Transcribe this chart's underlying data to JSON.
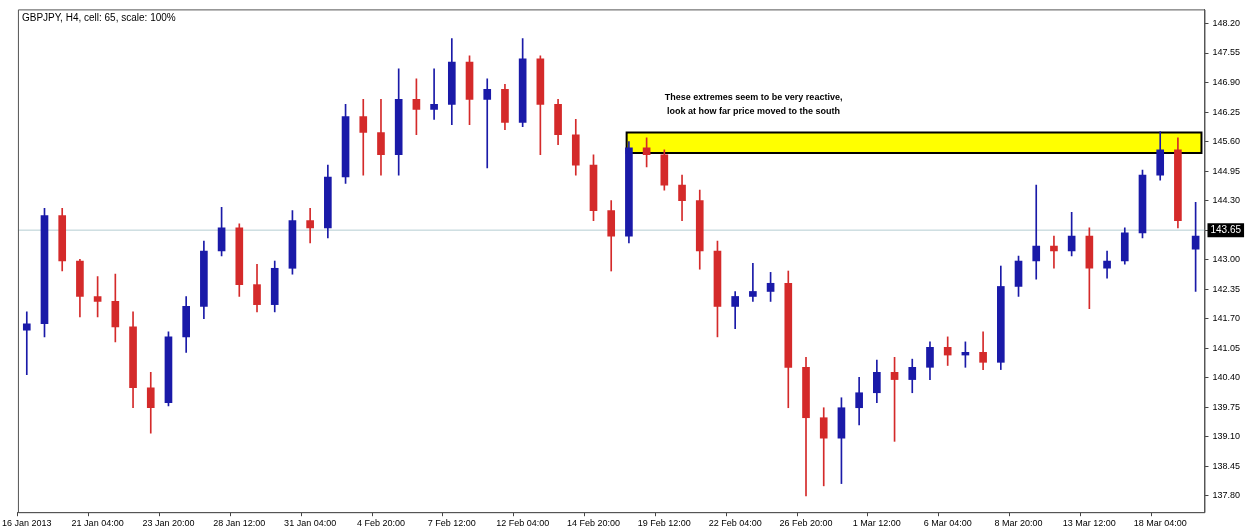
{
  "chart_data": {
    "type": "candlestick",
    "title": "GBPJPY, H4, cell: 65, scale: 100%",
    "categories": [
      "16 Jan 2013",
      null,
      null,
      null,
      "21 Jan 04:00",
      null,
      null,
      null,
      "23 Jan 20:00",
      null,
      null,
      null,
      "28 Jan 12:00",
      null,
      null,
      null,
      "31 Jan 04:00",
      null,
      null,
      null,
      "4 Feb 20:00",
      null,
      null,
      null,
      "7 Feb 12:00",
      null,
      null,
      null,
      "12 Feb 04:00",
      null,
      null,
      null,
      "14 Feb 20:00",
      null,
      null,
      null,
      "19 Feb 12:00",
      null,
      null,
      null,
      "22 Feb 04:00",
      null,
      null,
      null,
      "26 Feb 20:00",
      null,
      null,
      null,
      "1 Mar 12:00",
      null,
      null,
      null,
      "6 Mar 04:00",
      null,
      null,
      null,
      "8 Mar 20:00",
      null,
      null,
      null,
      "13 Mar 12:00",
      null,
      null,
      null,
      "18 Mar 04:00",
      null,
      null
    ],
    "ohlc": [
      [
        141.45,
        141.85,
        140.47,
        141.59
      ],
      [
        141.59,
        144.13,
        141.3,
        143.97
      ],
      [
        143.97,
        144.13,
        142.75,
        142.97
      ],
      [
        142.97,
        143.01,
        141.74,
        142.19
      ],
      [
        142.19,
        142.63,
        141.74,
        142.08
      ],
      [
        142.08,
        142.68,
        141.19,
        141.52
      ],
      [
        141.52,
        141.85,
        139.74,
        140.18
      ],
      [
        140.18,
        140.52,
        139.18,
        139.74
      ],
      [
        139.85,
        141.41,
        139.78,
        141.3
      ],
      [
        141.3,
        142.19,
        140.96,
        141.97
      ],
      [
        141.97,
        143.41,
        141.7,
        143.19
      ],
      [
        143.19,
        144.15,
        143.08,
        143.7
      ],
      [
        143.7,
        143.79,
        142.19,
        142.45
      ],
      [
        142.45,
        142.9,
        141.85,
        142.01
      ],
      [
        142.01,
        142.97,
        141.85,
        142.81
      ],
      [
        142.81,
        144.08,
        142.68,
        143.86
      ],
      [
        143.86,
        144.13,
        143.37,
        143.7
      ],
      [
        143.7,
        145.08,
        143.48,
        144.82
      ],
      [
        144.82,
        146.42,
        144.68,
        146.15
      ],
      [
        146.15,
        146.53,
        144.86,
        145.8
      ],
      [
        145.8,
        146.53,
        144.86,
        145.31
      ],
      [
        145.31,
        147.2,
        144.86,
        146.53
      ],
      [
        146.53,
        146.98,
        145.75,
        146.31
      ],
      [
        146.31,
        147.2,
        146.09,
        146.42
      ],
      [
        146.42,
        147.87,
        145.97,
        147.35
      ],
      [
        147.35,
        147.49,
        145.97,
        146.53
      ],
      [
        146.53,
        146.98,
        145.02,
        146.75
      ],
      [
        146.75,
        146.86,
        145.86,
        146.02
      ],
      [
        146.02,
        147.87,
        145.93,
        147.42
      ],
      [
        147.42,
        147.49,
        145.31,
        146.42
      ],
      [
        146.42,
        146.53,
        145.53,
        145.75
      ],
      [
        145.75,
        146.09,
        144.86,
        145.08
      ],
      [
        145.08,
        145.31,
        143.86,
        144.08
      ],
      [
        144.08,
        144.3,
        142.75,
        143.52
      ],
      [
        143.52,
        145.6,
        143.37,
        145.46
      ],
      [
        145.46,
        145.68,
        145.04,
        145.31
      ],
      [
        145.31,
        145.42,
        144.53,
        144.64
      ],
      [
        144.64,
        144.86,
        143.86,
        144.3
      ],
      [
        144.3,
        144.53,
        142.79,
        143.19
      ],
      [
        143.19,
        143.41,
        141.3,
        141.97
      ],
      [
        141.97,
        142.3,
        141.48,
        142.19
      ],
      [
        142.19,
        142.92,
        142.08,
        142.3
      ],
      [
        142.3,
        142.72,
        142.08,
        142.48
      ],
      [
        142.48,
        142.75,
        139.74,
        140.63
      ],
      [
        140.63,
        140.85,
        137.8,
        139.52
      ],
      [
        139.52,
        139.74,
        138.02,
        139.07
      ],
      [
        139.07,
        139.96,
        138.07,
        139.74
      ],
      [
        139.74,
        140.41,
        139.36,
        140.07
      ],
      [
        140.07,
        140.79,
        139.85,
        140.52
      ],
      [
        140.52,
        140.85,
        139.0,
        140.36
      ],
      [
        140.36,
        140.81,
        140.07,
        140.63
      ],
      [
        140.63,
        141.19,
        140.36,
        141.07
      ],
      [
        141.07,
        141.3,
        140.67,
        140.9
      ],
      [
        140.9,
        141.19,
        140.63,
        140.96
      ],
      [
        140.96,
        141.41,
        140.58,
        140.74
      ],
      [
        140.74,
        142.86,
        140.58,
        142.41
      ],
      [
        142.41,
        143.08,
        142.19,
        142.97
      ],
      [
        142.97,
        144.64,
        142.57,
        143.3
      ],
      [
        143.3,
        143.52,
        142.81,
        143.19
      ],
      [
        143.19,
        144.04,
        143.08,
        143.52
      ],
      [
        143.52,
        143.7,
        141.92,
        142.81
      ],
      [
        142.81,
        143.19,
        142.59,
        142.97
      ],
      [
        142.97,
        143.7,
        142.9,
        143.59
      ],
      [
        143.59,
        144.97,
        143.48,
        144.86
      ],
      [
        144.86,
        145.82,
        144.75,
        145.42
      ],
      [
        145.42,
        145.68,
        143.7,
        143.86
      ],
      [
        143.23,
        144.26,
        142.3,
        143.52
      ]
    ],
    "colors": [
      "#1a1aa8",
      "#1a1aa8",
      "#d42a2a",
      "#d42a2a",
      "#d42a2a",
      "#d42a2a",
      "#d42a2a",
      "#d42a2a",
      "#1a1aa8",
      "#1a1aa8",
      "#1a1aa8",
      "#1a1aa8",
      "#d42a2a",
      "#d42a2a",
      "#1a1aa8",
      "#1a1aa8",
      "#d42a2a",
      "#1a1aa8",
      "#1a1aa8",
      "#d42a2a",
      "#d42a2a",
      "#1a1aa8",
      "#d42a2a",
      "#1a1aa8",
      "#1a1aa8",
      "#d42a2a",
      "#1a1aa8",
      "#d42a2a",
      "#1a1aa8",
      "#d42a2a",
      "#d42a2a",
      "#d42a2a",
      "#d42a2a",
      "#d42a2a",
      "#1a1aa8",
      "#d42a2a",
      "#d42a2a",
      "#d42a2a",
      "#d42a2a",
      "#d42a2a",
      "#1a1aa8",
      "#1a1aa8",
      "#1a1aa8",
      "#d42a2a",
      "#d42a2a",
      "#d42a2a",
      "#1a1aa8",
      "#1a1aa8",
      "#1a1aa8",
      "#d42a2a",
      "#1a1aa8",
      "#1a1aa8",
      "#d42a2a",
      "#1a1aa8",
      "#d42a2a",
      "#1a1aa8",
      "#1a1aa8",
      "#1a1aa8",
      "#d42a2a",
      "#1a1aa8",
      "#d42a2a",
      "#1a1aa8",
      "#1a1aa8",
      "#1a1aa8",
      "#1a1aa8",
      "#d42a2a",
      "#1a1aa8"
    ],
    "ylim": [
      137.44,
      148.51
    ],
    "yticks": [
      {
        "value": 148.2,
        "label": "148.20"
      },
      {
        "value": 147.55,
        "label": "147.55"
      },
      {
        "value": 146.9,
        "label": "146.90"
      },
      {
        "value": 146.25,
        "label": "146.25"
      },
      {
        "value": 145.6,
        "label": "145.60"
      },
      {
        "value": 144.95,
        "label": "144.95"
      },
      {
        "value": 144.3,
        "label": "144.30"
      },
      {
        "value": 143.65,
        "label": "143.65"
      },
      {
        "value": 143.0,
        "label": "143.00"
      },
      {
        "value": 142.35,
        "label": "142.35"
      },
      {
        "value": 141.7,
        "label": "141.70"
      },
      {
        "value": 141.05,
        "label": "141.05"
      },
      {
        "value": 140.4,
        "label": "140.40"
      },
      {
        "value": 139.75,
        "label": "139.75"
      },
      {
        "value": 139.1,
        "label": "139.10"
      },
      {
        "value": 138.45,
        "label": "138.45"
      },
      {
        "value": 137.8,
        "label": "137.80"
      }
    ],
    "ref_lines": [
      {
        "axis": "y",
        "value": 143.65,
        "label": "143.65",
        "color": "#b4cdd2"
      }
    ],
    "bands": [
      {
        "axis": "y",
        "from": 145.35,
        "to": 145.8,
        "color": "#ffff00"
      }
    ],
    "annotations": [
      "These extremes seem to be very reactive, look at how far price moved to the south"
    ],
    "grid": false,
    "legend": false
  }
}
